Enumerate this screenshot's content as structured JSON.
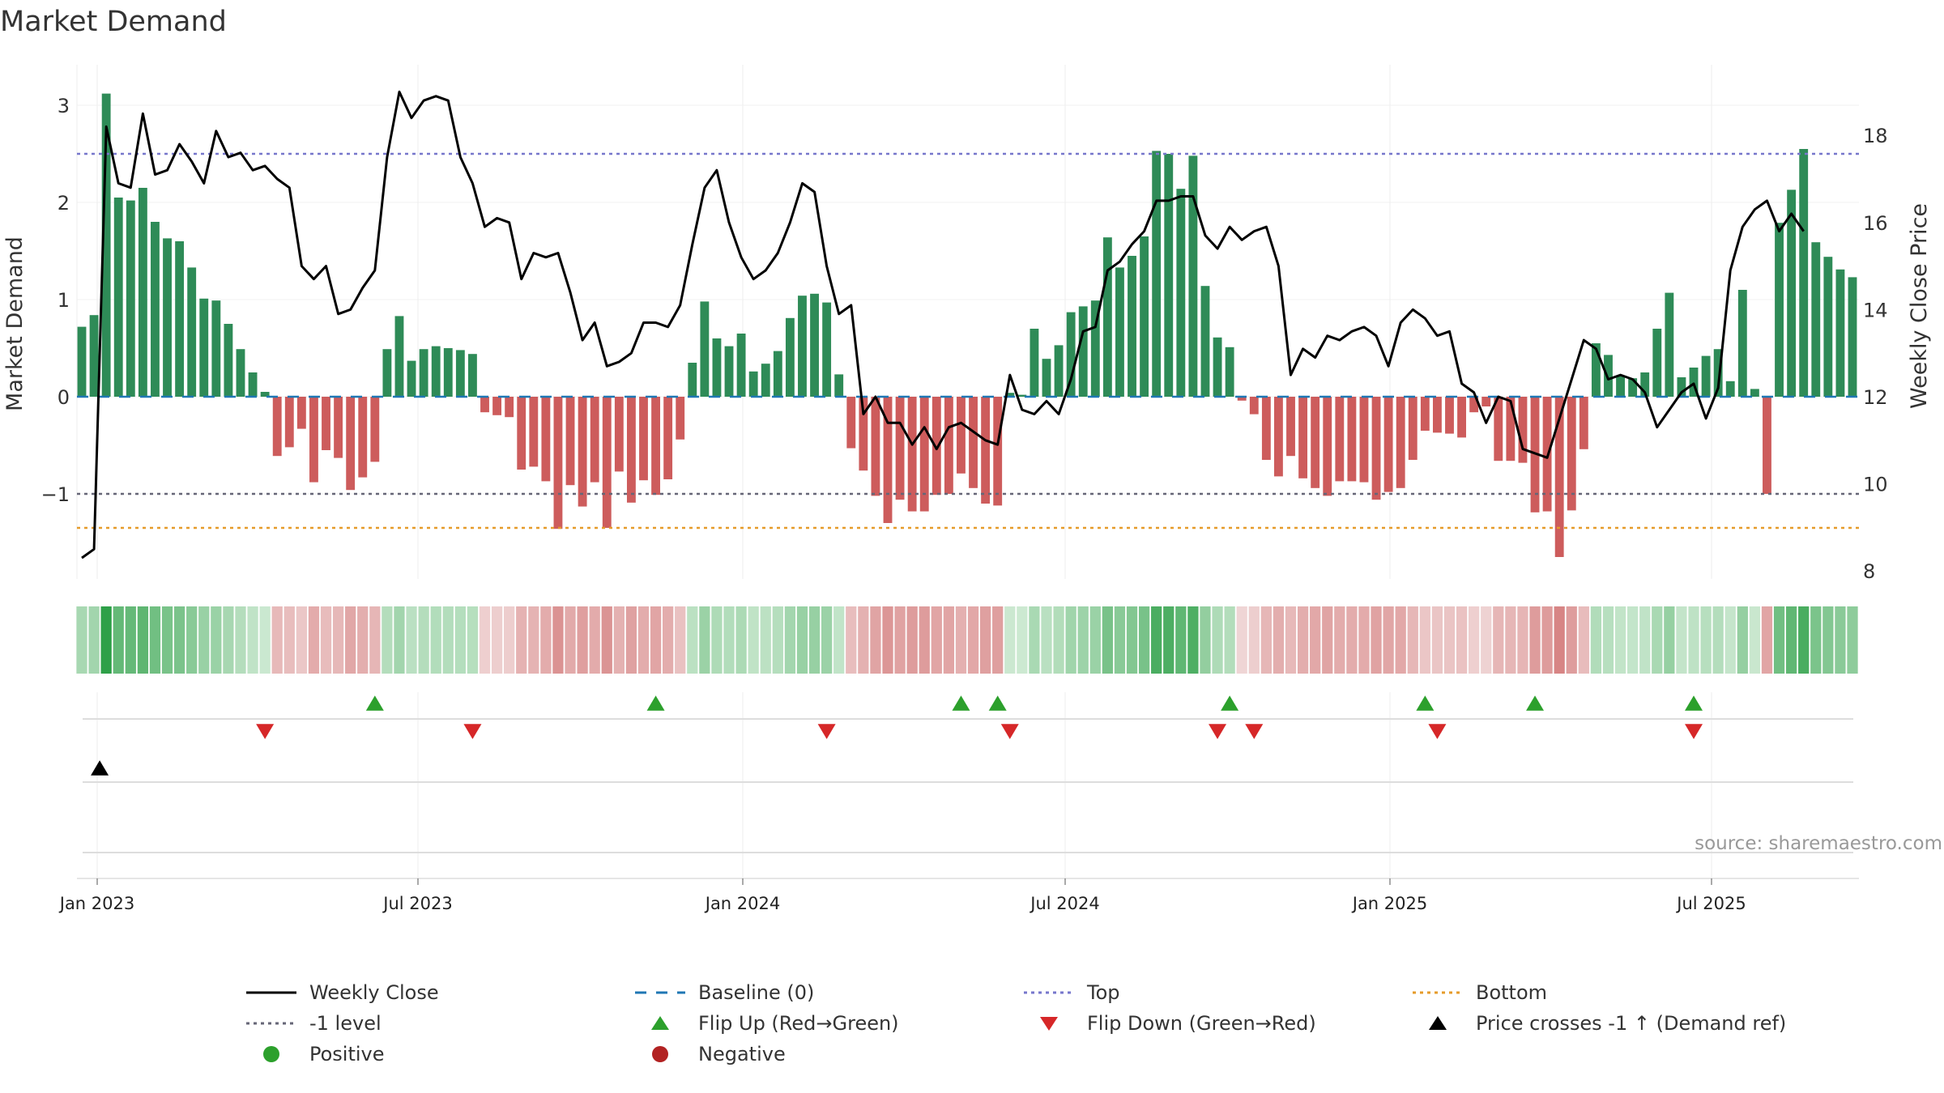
{
  "chart_data": {
    "type": "bar",
    "title": "Market Demand",
    "ylabel_left": "Market Demand",
    "ylabel_right": "Weekly Close Price",
    "source": "source: sharemaestro.com",
    "x_tick_labels": [
      "Jan 2023",
      "Jul 2023",
      "Jan 2024",
      "Jul 2024",
      "Jan 2025",
      "Jul 2025"
    ],
    "left_y_ticks": [
      {
        "value": 3,
        "label": "3"
      },
      {
        "value": 2,
        "label": "2"
      },
      {
        "value": 1,
        "label": "1"
      },
      {
        "value": 0,
        "label": "0"
      },
      {
        "value": -1,
        "label": "−1"
      }
    ],
    "right_y_ticks": [
      {
        "value": 18,
        "label": "18"
      },
      {
        "value": 16,
        "label": "16"
      },
      {
        "value": 14,
        "label": "14"
      },
      {
        "value": 12,
        "label": "12"
      },
      {
        "value": 10,
        "label": "10"
      },
      {
        "value": 8,
        "label": "8"
      }
    ],
    "left_ylim": [
      -1.9,
      3.35
    ],
    "right_ylim": [
      7.7,
      19.15
    ],
    "reference_lines": {
      "top": 2.5,
      "minus_one": -1,
      "bottom": -1.35,
      "baseline": 0
    },
    "demand": [
      0.72,
      0.84,
      3.12,
      2.05,
      2.02,
      2.15,
      1.8,
      1.63,
      1.6,
      1.33,
      1.01,
      0.99,
      0.75,
      0.49,
      0.25,
      0.05,
      -0.61,
      -0.52,
      -0.33,
      -0.88,
      -0.55,
      -0.63,
      -0.96,
      -0.83,
      -0.67,
      0.49,
      0.83,
      0.37,
      0.49,
      0.52,
      0.5,
      0.48,
      0.44,
      -0.16,
      -0.19,
      -0.21,
      -0.75,
      -0.72,
      -0.87,
      -1.36,
      -0.91,
      -1.13,
      -0.88,
      -1.35,
      -0.77,
      -1.09,
      -0.86,
      -1.01,
      -0.85,
      -0.44,
      0.35,
      0.98,
      0.6,
      0.52,
      0.65,
      0.26,
      0.34,
      0.47,
      0.81,
      1.04,
      1.06,
      0.97,
      0.23,
      -0.53,
      -0.76,
      -1.02,
      -1.3,
      -1.06,
      -1.18,
      -1.18,
      -1.01,
      -1.0,
      -0.79,
      -0.94,
      -1.1,
      -1.12,
      0.04,
      0.02,
      0.7,
      0.39,
      0.53,
      0.87,
      0.93,
      0.99,
      1.64,
      1.33,
      1.45,
      1.65,
      2.53,
      2.5,
      2.14,
      2.48,
      1.14,
      0.61,
      0.51,
      -0.04,
      -0.18,
      -0.65,
      -0.82,
      -0.61,
      -0.84,
      -0.94,
      -1.02,
      -0.87,
      -0.87,
      -0.88,
      -1.06,
      -0.98,
      -0.94,
      -0.65,
      -0.35,
      -0.37,
      -0.38,
      -0.42,
      -0.16,
      -0.1,
      -0.66,
      -0.66,
      -0.68,
      -1.19,
      -1.18,
      -1.65,
      -1.17,
      -0.54,
      0.55,
      0.43,
      0.22,
      0.19,
      0.25,
      0.7,
      1.07,
      0.2,
      0.3,
      0.42,
      0.49,
      0.16,
      1.1,
      0.08,
      -1.0,
      1.79,
      2.13,
      2.55,
      1.59,
      1.44,
      1.31,
      1.23
    ],
    "weekly_close": [
      8.3,
      8.5,
      18.2,
      16.9,
      16.8,
      18.5,
      17.1,
      17.2,
      17.8,
      17.4,
      16.9,
      18.1,
      17.5,
      17.6,
      17.2,
      17.3,
      17.0,
      16.8,
      15.0,
      14.7,
      15.0,
      13.9,
      14.0,
      14.5,
      14.9,
      17.5,
      19.0,
      18.4,
      18.8,
      18.9,
      18.8,
      17.5,
      16.9,
      15.9,
      16.1,
      16.0,
      14.7,
      15.3,
      15.2,
      15.3,
      14.4,
      13.3,
      13.7,
      12.7,
      12.8,
      13.0,
      13.7,
      13.7,
      13.6,
      14.1,
      15.5,
      16.8,
      17.2,
      16.0,
      15.2,
      14.7,
      14.9,
      15.3,
      16.0,
      16.9,
      16.7,
      15.0,
      13.9,
      14.1,
      11.6,
      12.0,
      11.4,
      11.4,
      10.9,
      11.3,
      10.8,
      11.3,
      11.4,
      11.2,
      11.0,
      10.9,
      12.5,
      11.7,
      11.6,
      11.9,
      11.6,
      12.4,
      13.5,
      13.6,
      14.9,
      15.1,
      15.5,
      15.8,
      16.5,
      16.5,
      16.6,
      16.6,
      15.7,
      15.4,
      15.9,
      15.6,
      15.8,
      15.9,
      15.0,
      12.5,
      13.1,
      12.9,
      13.4,
      13.3,
      13.5,
      13.6,
      13.4,
      12.7,
      13.7,
      14.0,
      13.8,
      13.4,
      13.5,
      12.3,
      12.1,
      11.4,
      12.0,
      11.9,
      10.8,
      10.7,
      10.6,
      11.5,
      12.4,
      13.3,
      13.1,
      12.4,
      12.5,
      12.4,
      12.1,
      11.3,
      11.7,
      12.1,
      12.3,
      11.5,
      12.2,
      14.9,
      15.9,
      16.3,
      16.5,
      15.8,
      16.2,
      15.8
    ],
    "flip_up_indices": [
      24,
      47,
      72,
      75,
      94,
      110,
      119,
      132
    ],
    "flip_down_indices": [
      15,
      32,
      61,
      76,
      93,
      96,
      111,
      132
    ],
    "price_cross_indices": [
      1
    ],
    "legend": [
      {
        "label": "Weekly Close",
        "symbol": "line-solid",
        "color": "#000000"
      },
      {
        "label": "Baseline (0)",
        "symbol": "line-dash",
        "color": "#1f77b4"
      },
      {
        "label": "Top",
        "symbol": "line-dot",
        "color": "#7777cc"
      },
      {
        "label": "Bottom",
        "symbol": "line-dot",
        "color": "#e69b2a"
      },
      {
        "label": "-1 level",
        "symbol": "line-dot",
        "color": "#666677"
      },
      {
        "label": "Flip Up (Red→Green)",
        "symbol": "triangle-up",
        "color": "#2ca02c"
      },
      {
        "label": "Flip Down (Green→Red)",
        "symbol": "triangle-down",
        "color": "#d62728"
      },
      {
        "label": "Price crosses -1 ↑ (Demand ref)",
        "symbol": "triangle-up",
        "color": "#000000"
      },
      {
        "label": "Positive",
        "symbol": "circle",
        "color": "#2ca02c"
      },
      {
        "label": "Negative",
        "symbol": "circle",
        "color": "#b22222"
      }
    ]
  },
  "colors": {
    "positive_bar": "#2e8b57",
    "negative_bar": "#cd5c5c",
    "price_line": "#000000",
    "baseline": "#1f77b4",
    "top_line": "#7777cc",
    "bottom_line": "#e69b2a",
    "minus_one_line": "#666677",
    "flip_up": "#2ca02c",
    "flip_down": "#d62728",
    "price_cross": "#000000"
  }
}
